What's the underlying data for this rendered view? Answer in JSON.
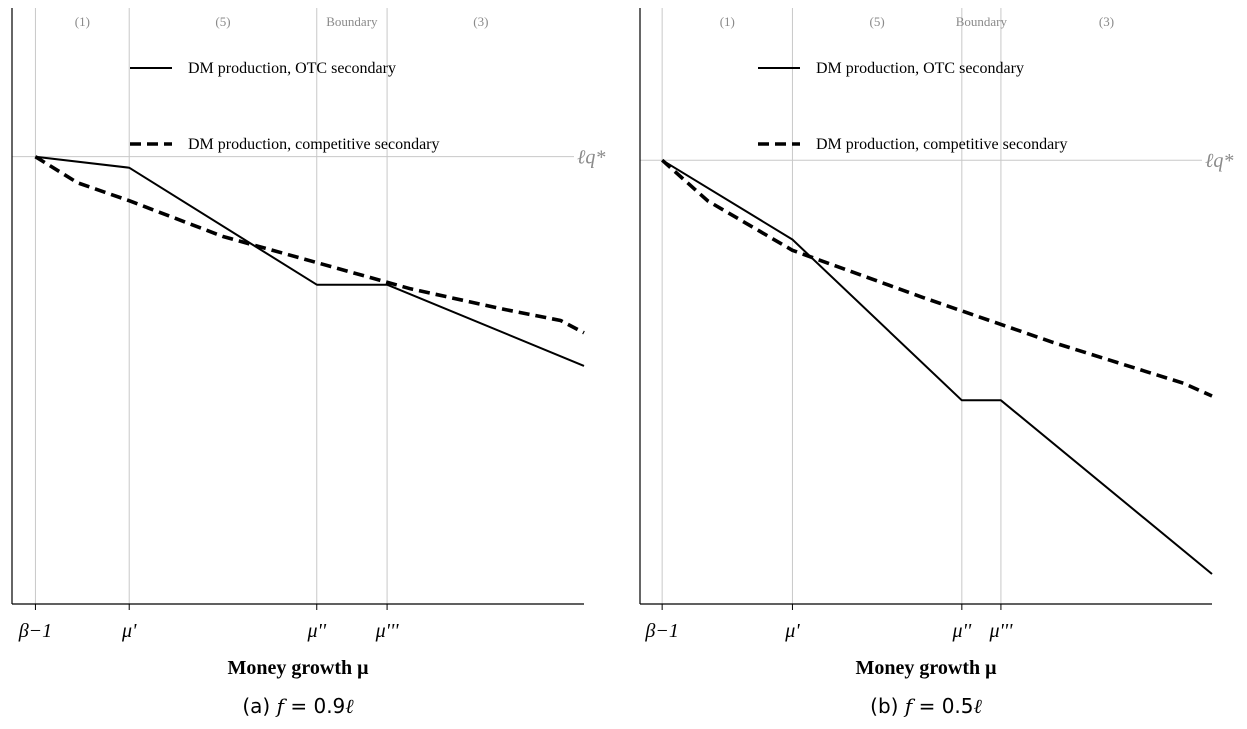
{
  "chart_data": [
    {
      "type": "line",
      "panel_caption": "(a)",
      "caption_var": "f",
      "caption_eq": "= 0.9",
      "caption_ell": "ℓ",
      "xlabel": "Money growth μ",
      "ylabel": "",
      "x_ticks": [
        "β−1",
        "μ'",
        "μ''",
        "μ'''"
      ],
      "x_tick_values": [
        0,
        1,
        3,
        3.75
      ],
      "xlim": [
        -0.25,
        5.85
      ],
      "ylim": [
        -3.25,
        1.08
      ],
      "region_labels": [
        {
          "text": "(1)",
          "x": 0.5
        },
        {
          "text": "(5)",
          "x": 2.0
        },
        {
          "text": "Boundary",
          "x": 3.375
        },
        {
          "text": "(3)",
          "x": 4.75
        }
      ],
      "reference_line": {
        "y": 0,
        "label": "ℓq*"
      },
      "legend": {
        "placement": "top-center"
      },
      "series": [
        {
          "name": "DM production, OTC secondary",
          "style": "solid",
          "x": [
            0,
            1,
            3,
            3.75,
            5.85
          ],
          "y": [
            0,
            -0.08,
            -0.93,
            -0.93,
            -1.52
          ]
        },
        {
          "name": "DM production, competitive secondary",
          "style": "dashed",
          "x": [
            0,
            0.45,
            1,
            2,
            3,
            4,
            5,
            5.6,
            5.85
          ],
          "y": [
            0,
            -0.19,
            -0.32,
            -0.58,
            -0.77,
            -0.96,
            -1.11,
            -1.19,
            -1.28
          ]
        }
      ]
    },
    {
      "type": "line",
      "panel_caption": "(b)",
      "caption_var": "f",
      "caption_eq": "= 0.5",
      "caption_ell": "ℓ",
      "xlabel": "Money growth μ",
      "ylabel": "",
      "x_ticks": [
        "β−1",
        "μ'",
        "μ''",
        "μ'''"
      ],
      "x_tick_values": [
        0,
        1,
        2.3,
        2.6
      ],
      "xlim": [
        -0.17,
        4.22
      ],
      "ylim": [
        -2.07,
        0.71
      ],
      "region_labels": [
        {
          "text": "(1)",
          "x": 0.5
        },
        {
          "text": "(5)",
          "x": 1.65
        },
        {
          "text": "Boundary",
          "x": 2.45
        },
        {
          "text": "(3)",
          "x": 3.41
        }
      ],
      "reference_line": {
        "y": 0,
        "label": "ℓq*"
      },
      "legend": {
        "placement": "top-center"
      },
      "series": [
        {
          "name": "DM production, OTC secondary",
          "style": "solid",
          "x": [
            0,
            1,
            2.3,
            2.6,
            4.22
          ],
          "y": [
            0,
            -0.37,
            -1.12,
            -1.12,
            -1.93
          ]
        },
        {
          "name": "DM production, competitive secondary",
          "style": "dashed",
          "x": [
            0,
            0.35,
            1,
            2,
            3,
            4,
            4.22
          ],
          "y": [
            0,
            -0.19,
            -0.42,
            -0.64,
            -0.85,
            -1.04,
            -1.1
          ]
        }
      ]
    }
  ]
}
